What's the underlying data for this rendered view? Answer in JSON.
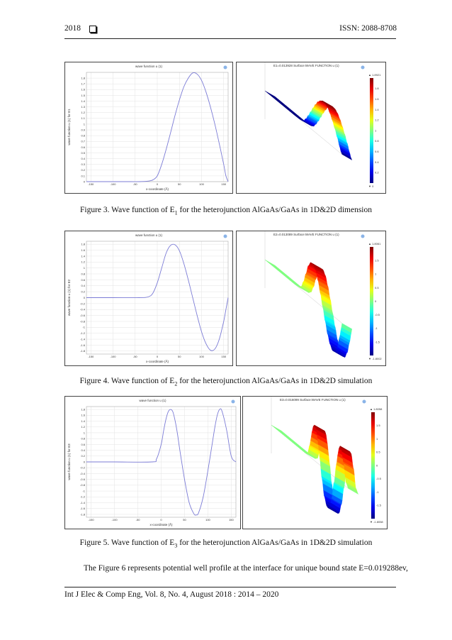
{
  "header": {
    "year": "2018",
    "issn": "ISSN: 2088-8708"
  },
  "figures": [
    {
      "caption_prefix": "Figure 3. Wave function of E",
      "caption_sub": "1",
      "caption_suffix": " for the heterojunction AlGaAs/GaAs in 1D&2D dimension",
      "plot_title": "wave function u (1)",
      "ylabel": "wave function u (1) for E1",
      "xlabel": "x-coordinate (Å)",
      "surface_title": "E1=0.013928 Surface:WAVE FUNCTION u (1)",
      "colorbar_max": "▲ 1.8921",
      "colorbar_min": "▼ 0",
      "colorbar_ticks": [
        "1.8",
        "1.6",
        "1.4",
        "1.2",
        "1",
        "0.8",
        "0.6",
        "0.4",
        "0.2"
      ],
      "chart_data": {
        "type": "line",
        "title": "wave function u (1)",
        "xlabel": "x-coordinate (Å)",
        "ylabel": "wave function u (1) for E1",
        "xlim": [
          -160,
          160
        ],
        "ylim": [
          0,
          1.9
        ],
        "xticks": [
          -150,
          -100,
          -50,
          0,
          50,
          100,
          150
        ],
        "yticks": [
          0,
          0.1,
          0.2,
          0.3,
          0.4,
          0.5,
          0.6,
          0.7,
          0.8,
          0.9,
          1,
          1.1,
          1.2,
          1.3,
          1.4,
          1.5,
          1.6,
          1.7,
          1.8
        ],
        "ytick_labels": [
          "0",
          "0.1",
          "0.2",
          "0.3",
          "0.4",
          "0.5",
          "0.6",
          "0.7",
          "0.8",
          "0.9",
          "1",
          "1.1",
          "1.2",
          "1.3",
          "1.4",
          "1.5",
          "1.6",
          "1.7",
          "1.8"
        ],
        "series": [
          {
            "x": [
              -160,
              -100,
              -60,
              -40,
              -20,
              -10,
              0,
              10,
              20,
              30,
              40,
              50,
              60,
              70,
              80,
              90,
              100,
              110,
              120,
              130,
              140,
              150,
              155,
              160
            ],
            "y": [
              0,
              0,
              0,
              0,
              0.01,
              0.03,
              0.1,
              0.3,
              0.56,
              0.85,
              1.15,
              1.42,
              1.65,
              1.8,
              1.89,
              1.87,
              1.76,
              1.56,
              1.3,
              1.0,
              0.66,
              0.3,
              0.1,
              0
            ]
          }
        ]
      }
    },
    {
      "caption_prefix": "Figure 4. Wave function of E",
      "caption_sub": "2",
      "caption_suffix": " for the heterojunction AlGaAs/GaAs in 1D&2D simulation",
      "plot_title": "wave function u (1)",
      "ylabel": "wave function u (1) for E2",
      "xlabel": "x-coordinate (Å)",
      "surface_title": "E2=0.013089 Surface:WAVE FUNCTION u (1)",
      "colorbar_max": "▲ 1.8061",
      "colorbar_min": "▼ -1.8002",
      "colorbar_ticks": [
        "1.5",
        "1",
        "0.5",
        "0",
        "-0.5",
        "-1",
        "-1.5"
      ],
      "chart_data": {
        "type": "line",
        "title": "wave function u (1)",
        "xlabel": "x-coordinate (Å)",
        "ylabel": "wave function u (1) for E2",
        "xlim": [
          -160,
          160
        ],
        "ylim": [
          -1.9,
          1.9
        ],
        "xticks": [
          -150,
          -100,
          -50,
          0,
          50,
          100,
          150
        ],
        "yticks": [
          -1.8,
          -1.6,
          -1.4,
          -1.2,
          -1,
          -0.8,
          -0.6,
          -0.4,
          -0.2,
          0,
          0.2,
          0.4,
          0.6,
          0.8,
          1,
          1.2,
          1.4,
          1.6,
          1.8
        ],
        "ytick_labels": [
          "-1.8",
          "-1.6",
          "-1.4",
          "-1.2",
          "-1",
          "-0.8",
          "-0.6",
          "-0.4",
          "-0.2",
          "0",
          "0.2",
          "0.4",
          "0.6",
          "0.8",
          "1",
          "1.2",
          "1.4",
          "1.6",
          "1.8"
        ],
        "series": [
          {
            "x": [
              -160,
              -100,
              -40,
              -20,
              -10,
              0,
              10,
              20,
              30,
              40,
              50,
              60,
              70,
              80,
              90,
              100,
              110,
              120,
              130,
              140,
              150,
              155,
              160
            ],
            "y": [
              0,
              0,
              0,
              0.03,
              0.15,
              0.5,
              1.0,
              1.5,
              1.76,
              1.78,
              1.58,
              1.15,
              0.6,
              0,
              -0.6,
              -1.15,
              -1.55,
              -1.77,
              -1.73,
              -1.4,
              -0.8,
              -0.4,
              0
            ]
          }
        ]
      }
    },
    {
      "caption_prefix": "Figure 5. Wave function of E",
      "caption_sub": "3",
      "caption_suffix": " for the heterojunction AlGaAs/GaAs in 1D&2D simulation",
      "plot_title": "wave function u (1)",
      "ylabel": "wave function u (1) for E3",
      "xlabel": "x-coordinate (Å)",
      "surface_title": "E3=0.016099 Surface:WAVE FUNCTION u (1)",
      "colorbar_max": "▲ 1.8058",
      "colorbar_min": "▼ -1.8058",
      "colorbar_ticks": [
        "1.5",
        "1",
        "0.5",
        "0",
        "-0.5",
        "-1",
        "-1.5"
      ],
      "chart_data": {
        "type": "line",
        "title": "wave function u (1)",
        "xlabel": "x-coordinate (Å)",
        "ylabel": "wave function u (1) for E3",
        "xlim": [
          -160,
          160
        ],
        "ylim": [
          -1.9,
          1.9
        ],
        "xticks": [
          -150,
          -100,
          -50,
          0,
          50,
          100,
          150
        ],
        "yticks": [
          -1.8,
          -1.6,
          -1.4,
          -1.2,
          -1,
          -0.8,
          -0.6,
          -0.4,
          -0.2,
          0,
          0.2,
          0.4,
          0.6,
          0.8,
          1,
          1.2,
          1.4,
          1.6,
          1.8
        ],
        "ytick_labels": [
          "-1.8",
          "-1.6",
          "-1.4",
          "-1.2",
          "-1",
          "-0.8",
          "-0.6",
          "-0.4",
          "-0.2",
          "0",
          "0.2",
          "0.4",
          "0.6",
          "0.8",
          "1",
          "1.2",
          "1.4",
          "1.6",
          "1.8"
        ],
        "series": [
          {
            "x": [
              -160,
              -100,
              -20,
              -10,
              0,
              5,
              10,
              15,
              20,
              25,
              30,
              35,
              40,
              50,
              60,
              70,
              75,
              80,
              90,
              100,
              110,
              115,
              120,
              125,
              130,
              140,
              150,
              160
            ],
            "y": [
              0,
              0,
              0,
              0.1,
              0.6,
              1.05,
              1.45,
              1.72,
              1.8,
              1.72,
              1.4,
              0.95,
              0.4,
              -0.6,
              -1.4,
              -1.78,
              -1.82,
              -1.75,
              -1.2,
              -0.3,
              0.7,
              1.2,
              1.6,
              1.8,
              1.75,
              1.1,
              0.2,
              0
            ]
          }
        ]
      }
    }
  ],
  "body_text": "The Figure 6 represents potential well profile at the interface for unique bound state E=0.019288ev,",
  "footer": "Int J Elec & Comp Eng, Vol. 8, No. 4, August 2018 :  2014 – 2020"
}
